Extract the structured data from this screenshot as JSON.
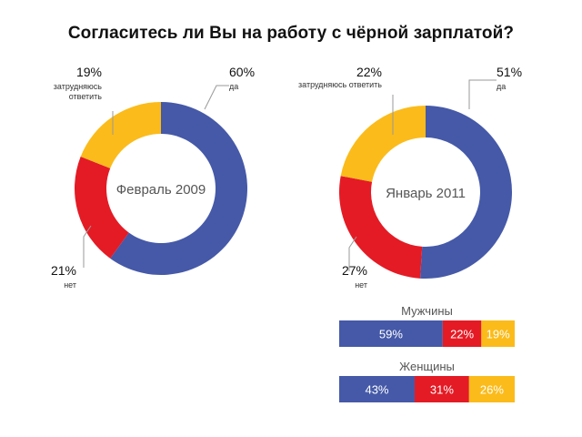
{
  "title": "Согласитесь ли Вы на работу с чёрной зарплатой?",
  "colors": {
    "yes": "#4559a8",
    "no": "#e41b25",
    "undecided": "#fbbb1a",
    "leader": "#9a9a9a",
    "center_text": "#555555"
  },
  "chart_data": [
    {
      "type": "pie",
      "variant": "donut",
      "center_label": "Февраль 2009",
      "slices": [
        {
          "label": "да",
          "value": 60,
          "display": "60%",
          "color": "#4559a8"
        },
        {
          "label": "нет",
          "value": 21,
          "display": "21%",
          "color": "#e41b25"
        },
        {
          "label": "затрудняюсь ответить",
          "value": 19,
          "display": "19%",
          "color": "#fbbb1a"
        }
      ]
    },
    {
      "type": "pie",
      "variant": "donut",
      "center_label": "Январь 2011",
      "slices": [
        {
          "label": "да",
          "value": 51,
          "display": "51%",
          "color": "#4559a8"
        },
        {
          "label": "нет",
          "value": 27,
          "display": "27%",
          "color": "#e41b25"
        },
        {
          "label": "затрудняюсь ответить",
          "value": 22,
          "display": "22%",
          "color": "#fbbb1a"
        }
      ]
    },
    {
      "type": "bar",
      "variant": "stacked-100",
      "title": "Мужчины",
      "values": [
        59,
        22,
        19
      ],
      "displays": [
        "59%",
        "22%",
        "19%"
      ],
      "colors": [
        "#4559a8",
        "#e41b25",
        "#fbbb1a"
      ]
    },
    {
      "type": "bar",
      "variant": "stacked-100",
      "title": "Женщины",
      "values": [
        43,
        31,
        26
      ],
      "displays": [
        "43%",
        "31%",
        "26%"
      ],
      "colors": [
        "#4559a8",
        "#e41b25",
        "#fbbb1a"
      ]
    }
  ]
}
